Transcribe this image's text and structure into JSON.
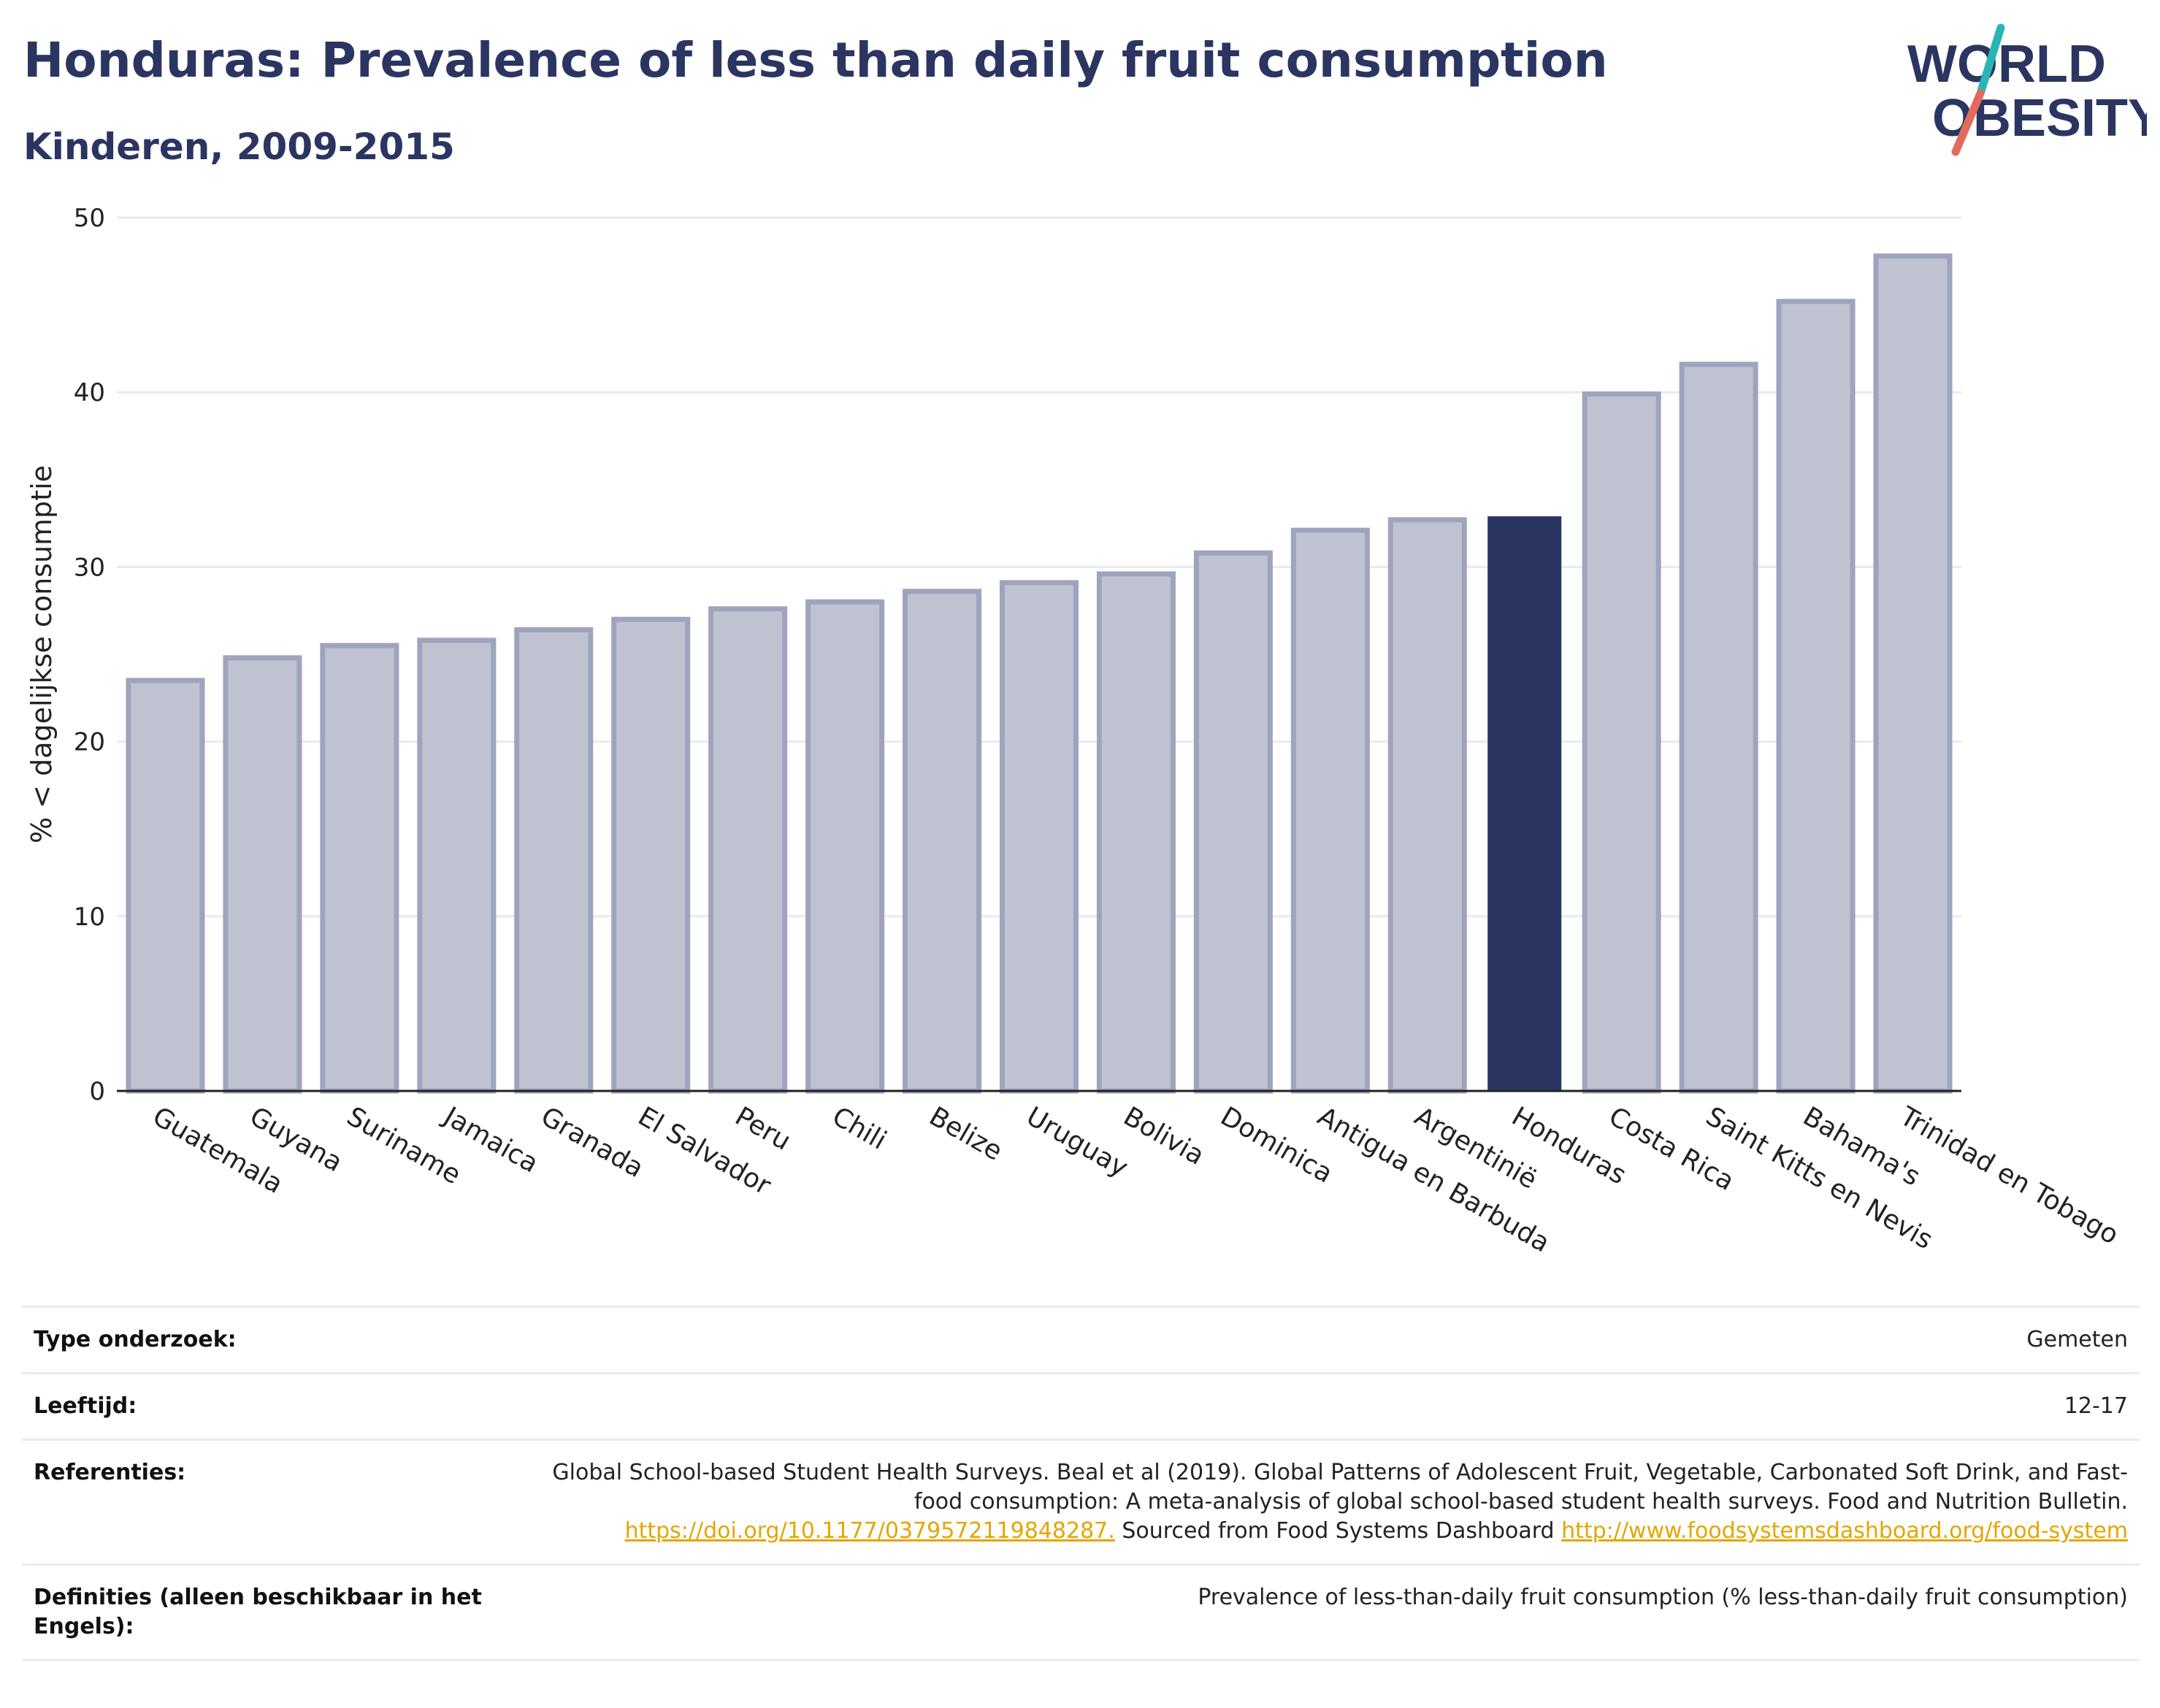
{
  "header": {
    "title": "Honduras: Prevalence of less than daily fruit consumption",
    "subtitle": "Kinderen, 2009-2015",
    "logo_line1": "WORLD",
    "logo_line2": "OBESITY"
  },
  "chart_data": {
    "type": "bar",
    "ylabel": "% < dagelijkse consumptie",
    "ylim": [
      0,
      50
    ],
    "yticks": [
      0,
      10,
      20,
      30,
      40,
      50
    ],
    "grid": true,
    "highlight": "Honduras",
    "categories": [
      "Guatemala",
      "Guyana",
      "Suriname",
      "Jamaica",
      "Granada",
      "El Salvador",
      "Peru",
      "Chili",
      "Belize",
      "Uruguay",
      "Bolivia",
      "Dominica",
      "Antigua en Barbuda",
      "Argentinië",
      "Honduras",
      "Costa Rica",
      "Saint Kitts en Nevis",
      "Bahama's",
      "Trinidad en Tobago"
    ],
    "values": [
      23.5,
      24.8,
      25.5,
      25.8,
      26.4,
      27.0,
      27.6,
      28.0,
      28.6,
      29.1,
      29.6,
      30.8,
      32.1,
      32.7,
      32.9,
      39.9,
      41.6,
      45.2,
      47.8
    ]
  },
  "colors": {
    "bar_fill": "#bfc3d1",
    "bar_stroke": "#9ea4bd",
    "highlight": "#2b3561",
    "grid": "#e8eaf1",
    "axis": "#222222",
    "link": "#e5a500",
    "logo_text": "#2b3561",
    "logo_slash_top": "#2ab4b4",
    "logo_slash_bottom": "#e36b5c"
  },
  "info": {
    "study_type_label": "Type onderzoek:",
    "study_type_value": "Gemeten",
    "age_label": "Leeftijd:",
    "age_value": "12-17",
    "references_label": "Referenties:",
    "references_text": "Global School-based Student Health Surveys. Beal et al (2019). Global Patterns of Adolescent Fruit, Vegetable, Carbonated Soft Drink, and Fast-food consumption: A meta-analysis of global school-based student health surveys. Food and Nutrition Bulletin.",
    "references_link1": "https://doi.org/10.1177/0379572119848287.",
    "references_mid": "Sourced from Food Systems Dashboard",
    "references_link2": "http://www.foodsystemsdashboard.org/food-system",
    "definitions_label": "Definities (alleen beschikbaar in het Engels):",
    "definitions_value": "Prevalence of less-than-daily fruit consumption (% less-than-daily fruit consumption)"
  }
}
